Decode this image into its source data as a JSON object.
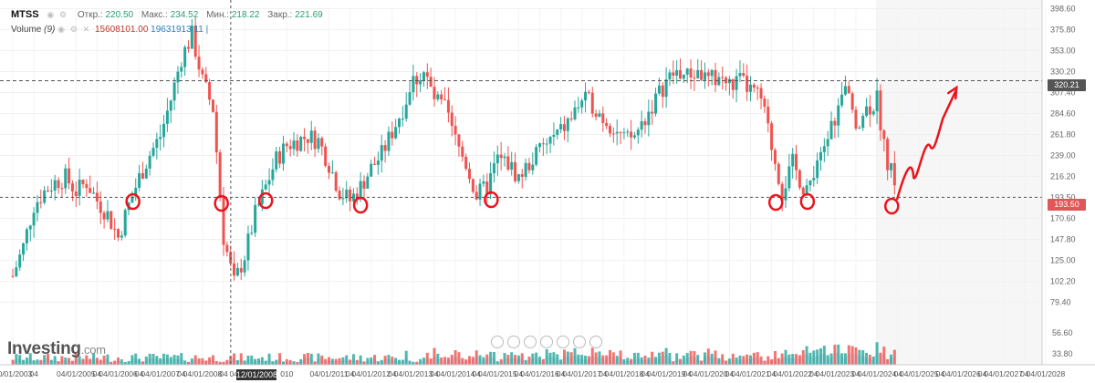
{
  "header": {
    "symbol": "MTSS",
    "open_label": "Откр.:",
    "open_value": "220.50",
    "high_label": "Макс.:",
    "high_value": "234.52",
    "low_label": "Мин.:",
    "low_value": "218.22",
    "close_label": "Закр.:",
    "close_value": "221.69",
    "volume_label": "Volume",
    "volume_period": "(9)",
    "volume_value1": "15608101.00",
    "volume_value2": "19631913",
    "volume_suffix": "11 |"
  },
  "logo": {
    "brand": "Investing",
    "suffix": ".com"
  },
  "crosshair": {
    "date_label": "12/01/2008",
    "price_label": "193.50"
  },
  "last_price": {
    "label": "320.21"
  },
  "colors": {
    "up": "#26a69a",
    "down": "#ef5350",
    "annotation": "#e8141e",
    "volume_area": "#b9d4ef",
    "crosshair_badge": "#e15759",
    "last_price_badge": "#555555"
  },
  "chart_data": {
    "type": "candlestick",
    "xlabel": "",
    "ylabel": "",
    "ylim": [
      79.0,
      400.0
    ],
    "y_ticks": [
      "398.60",
      "375.80",
      "353.00",
      "330.20",
      "307.40",
      "284.60",
      "261.80",
      "239.00",
      "216.20",
      "193.50",
      "170.60",
      "147.80",
      "125.00",
      "102.20",
      "79.40"
    ],
    "volume_ticks": [
      "56.60",
      "33.80"
    ],
    "x_ticks": [
      {
        "label": "10/01/2003",
        "date": 2003.75
      },
      {
        "label": "04",
        "date": 2004.25
      },
      {
        "label": "04/01/2005",
        "date": 2005.25
      },
      {
        "label": "04",
        "date": 2005.75
      },
      {
        "label": "04/01/2006",
        "date": 2006.25
      },
      {
        "label": "04",
        "date": 2006.75
      },
      {
        "label": "04/01/2007",
        "date": 2007.25
      },
      {
        "label": "04",
        "date": 2007.75
      },
      {
        "label": "04/01/2008",
        "date": 2008.25
      },
      {
        "label": "04",
        "date": 2008.75
      },
      {
        "label": "04/01/20",
        "date": 2009.25
      },
      {
        "label": "010",
        "date": 2010.25
      },
      {
        "label": "04/01/2011",
        "date": 2011.25
      },
      {
        "label": "04",
        "date": 2011.75
      },
      {
        "label": "04/01/2012",
        "date": 2012.25
      },
      {
        "label": "04",
        "date": 2012.75
      },
      {
        "label": "04/01/2013",
        "date": 2013.25
      },
      {
        "label": "04",
        "date": 2013.75
      },
      {
        "label": "04/01/2014",
        "date": 2014.25
      },
      {
        "label": "04",
        "date": 2014.75
      },
      {
        "label": "04/01/2015",
        "date": 2015.25
      },
      {
        "label": "04",
        "date": 2015.75
      },
      {
        "label": "04/01/2016",
        "date": 2016.25
      },
      {
        "label": "04",
        "date": 2016.75
      },
      {
        "label": "04/01/2017",
        "date": 2017.25
      },
      {
        "label": "04",
        "date": 2017.75
      },
      {
        "label": "04/01/2018",
        "date": 2018.25
      },
      {
        "label": "04",
        "date": 2018.75
      },
      {
        "label": "04/01/2019",
        "date": 2019.25
      },
      {
        "label": "04",
        "date": 2019.75
      },
      {
        "label": "04/01/2020",
        "date": 2020.25
      },
      {
        "label": "04",
        "date": 2020.75
      },
      {
        "label": "04/01/2021",
        "date": 2021.25
      },
      {
        "label": "04",
        "date": 2021.75
      },
      {
        "label": "04/01/2022",
        "date": 2022.25
      },
      {
        "label": "04",
        "date": 2022.75
      },
      {
        "label": "04/01/2023",
        "date": 2023.25
      },
      {
        "label": "04",
        "date": 2023.75
      },
      {
        "label": "04/01/2024",
        "date": 2024.25
      },
      {
        "label": "04",
        "date": 2024.75
      },
      {
        "label": "04/01/2025",
        "date": 2025.25
      },
      {
        "label": "04",
        "date": 2025.75
      },
      {
        "label": "04/01/2026",
        "date": 2026.25
      },
      {
        "label": "04",
        "date": 2026.75
      },
      {
        "label": "04/01/2027",
        "date": 2027.25
      },
      {
        "label": "04",
        "date": 2027.75
      },
      {
        "label": "04/01/2028",
        "date": 2028.25
      }
    ],
    "close_series": [
      [
        "2003-10",
        108
      ],
      [
        "2004-01",
        140
      ],
      [
        "2004-04",
        185
      ],
      [
        "2004-07",
        200
      ],
      [
        "2004-10",
        210
      ],
      [
        "2005-01",
        215
      ],
      [
        "2005-04",
        200
      ],
      [
        "2005-07",
        210
      ],
      [
        "2005-10",
        190
      ],
      [
        "2006-01",
        175
      ],
      [
        "2006-04",
        150
      ],
      [
        "2006-07",
        185
      ],
      [
        "2006-10",
        215
      ],
      [
        "2007-01",
        240
      ],
      [
        "2007-04",
        260
      ],
      [
        "2007-07",
        300
      ],
      [
        "2007-10",
        345
      ],
      [
        "2008-01",
        370
      ],
      [
        "2008-04",
        320
      ],
      [
        "2008-07",
        290
      ],
      [
        "2008-10",
        150
      ],
      [
        "2009-01",
        100
      ],
      [
        "2009-04",
        130
      ],
      [
        "2009-07",
        175
      ],
      [
        "2009-10",
        205
      ],
      [
        "2010-01",
        235
      ],
      [
        "2010-04",
        250
      ],
      [
        "2010-07",
        255
      ],
      [
        "2010-10",
        260
      ],
      [
        "2011-01",
        255
      ],
      [
        "2011-04",
        230
      ],
      [
        "2011-07",
        200
      ],
      [
        "2011-10",
        190
      ],
      [
        "2012-01",
        205
      ],
      [
        "2012-04",
        225
      ],
      [
        "2012-07",
        240
      ],
      [
        "2012-10",
        265
      ],
      [
        "2013-01",
        290
      ],
      [
        "2013-04",
        320
      ],
      [
        "2013-07",
        330
      ],
      [
        "2013-10",
        300
      ],
      [
        "2014-01",
        290
      ],
      [
        "2014-04",
        255
      ],
      [
        "2014-07",
        230
      ],
      [
        "2014-10",
        195
      ],
      [
        "2015-01",
        205
      ],
      [
        "2015-04",
        235
      ],
      [
        "2015-07",
        230
      ],
      [
        "2015-10",
        215
      ],
      [
        "2016-01",
        230
      ],
      [
        "2016-04",
        245
      ],
      [
        "2016-07",
        255
      ],
      [
        "2016-10",
        265
      ],
      [
        "2017-01",
        280
      ],
      [
        "2017-04",
        300
      ],
      [
        "2017-07",
        295
      ],
      [
        "2017-10",
        280
      ],
      [
        "2018-01",
        270
      ],
      [
        "2018-04",
        255
      ],
      [
        "2018-07",
        260
      ],
      [
        "2018-10",
        280
      ],
      [
        "2019-01",
        300
      ],
      [
        "2019-04",
        320
      ],
      [
        "2019-07",
        330
      ],
      [
        "2019-10",
        325
      ],
      [
        "2020-01",
        330
      ],
      [
        "2020-04",
        320
      ],
      [
        "2020-07",
        325
      ],
      [
        "2020-10",
        315
      ],
      [
        "2021-01",
        320
      ],
      [
        "2021-04",
        310
      ],
      [
        "2021-07",
        300
      ],
      [
        "2021-10",
        250
      ],
      [
        "2022-01",
        200
      ],
      [
        "2022-04",
        230
      ],
      [
        "2022-07",
        205
      ],
      [
        "2022-10",
        210
      ],
      [
        "2023-01",
        250
      ],
      [
        "2023-04",
        280
      ],
      [
        "2023-07",
        310
      ],
      [
        "2023-10",
        275
      ],
      [
        "2024-01",
        290
      ],
      [
        "2024-04",
        300
      ],
      [
        "2024-07",
        230
      ],
      [
        "2024-10",
        205
      ]
    ],
    "annotation": "hand-drawn red circles at support near 193.50 and upward arrow toward 320.21"
  }
}
